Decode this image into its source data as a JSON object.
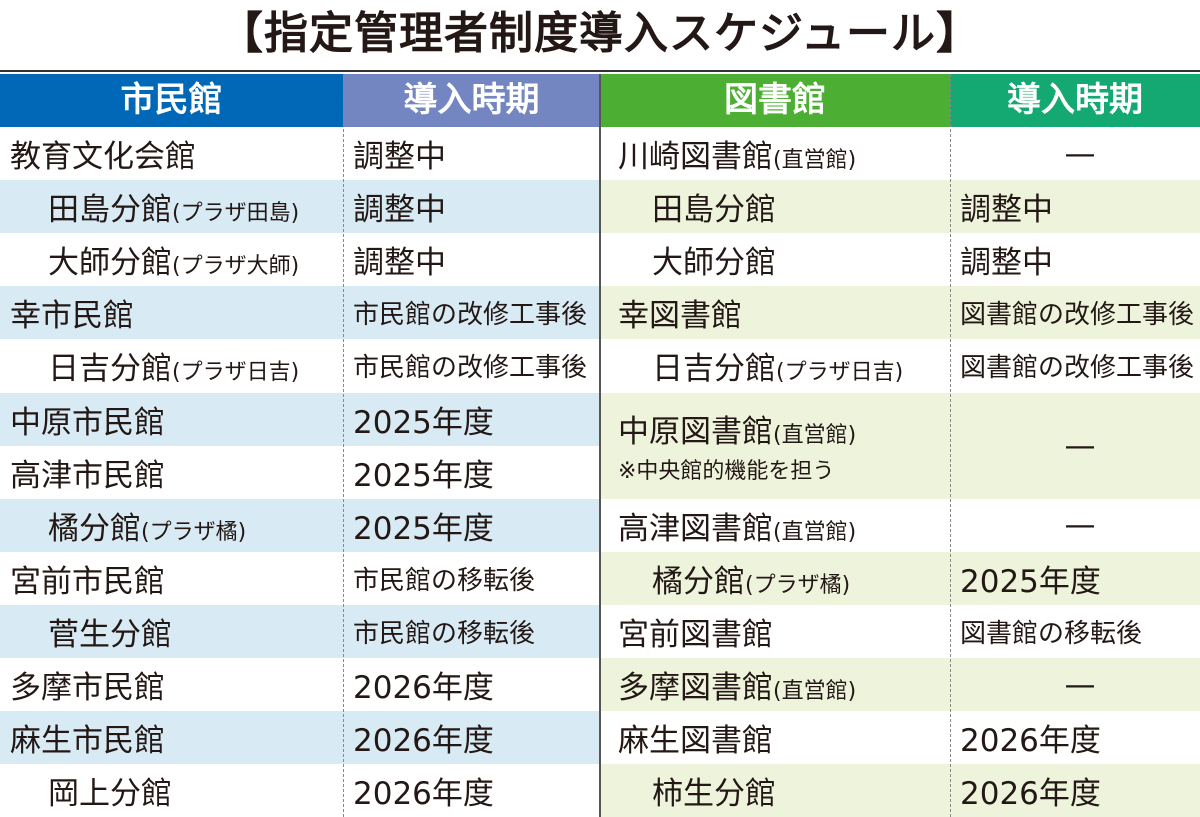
{
  "title": "【指定管理者制度導入スケジュール】",
  "colors": {
    "civic_header": "#0068b7",
    "civic_period_header": "#7486c2",
    "library_header": "#4cae32",
    "library_period_header": "#14a873",
    "civic_stripe": "#d8eaf4",
    "library_stripe": "#eef4dc"
  },
  "headers": {
    "civic": "市民館",
    "civic_period": "導入時期",
    "library": "図書館",
    "library_period": "導入時期"
  },
  "civic_rows": [
    {
      "name": "教育文化会館",
      "suffix": "",
      "period": "調整中",
      "indent": false
    },
    {
      "name": "田島分館",
      "suffix": "(プラザ田島)",
      "period": "調整中",
      "indent": true
    },
    {
      "name": "大師分館",
      "suffix": "(プラザ大師)",
      "period": "調整中",
      "indent": true
    },
    {
      "name": "幸市民館",
      "suffix": "",
      "period": "市民館の改修工事後",
      "indent": false
    },
    {
      "name": "日吉分館",
      "suffix": "(プラザ日吉)",
      "period": "市民館の改修工事後",
      "indent": true
    },
    {
      "name": "中原市民館",
      "suffix": "",
      "period": "2025年度",
      "indent": false
    },
    {
      "name": "高津市民館",
      "suffix": "",
      "period": "2025年度",
      "indent": false
    },
    {
      "name": "橘分館",
      "suffix": "(プラザ橘)",
      "period": "2025年度",
      "indent": true
    },
    {
      "name": "宮前市民館",
      "suffix": "",
      "period": "市民館の移転後",
      "indent": false
    },
    {
      "name": "菅生分館",
      "suffix": "",
      "period": "市民館の移転後",
      "indent": true
    },
    {
      "name": "多摩市民館",
      "suffix": "",
      "period": "2026年度",
      "indent": false
    },
    {
      "name": "麻生市民館",
      "suffix": "",
      "period": "2026年度",
      "indent": false
    },
    {
      "name": "岡上分館",
      "suffix": "",
      "period": "2026年度",
      "indent": true
    }
  ],
  "library_rows": [
    {
      "name": "川崎図書館",
      "suffix": "(直営館)",
      "note": "",
      "period": "—",
      "indent": false,
      "span": 1
    },
    {
      "name": "田島分館",
      "suffix": "",
      "note": "",
      "period": "調整中",
      "indent": true,
      "span": 1
    },
    {
      "name": "大師分館",
      "suffix": "",
      "note": "",
      "period": "調整中",
      "indent": true,
      "span": 1
    },
    {
      "name": "幸図書館",
      "suffix": "",
      "note": "",
      "period": "図書館の改修工事後",
      "indent": false,
      "span": 1
    },
    {
      "name": "日吉分館",
      "suffix": "(プラザ日吉)",
      "note": "",
      "period": "図書館の改修工事後",
      "indent": true,
      "span": 1
    },
    {
      "name": "中原図書館",
      "suffix": "(直営館)",
      "note": "※中央館的機能を担う",
      "period": "—",
      "indent": false,
      "span": 2
    },
    {
      "name": "高津図書館",
      "suffix": "(直営館)",
      "note": "",
      "period": "—",
      "indent": false,
      "span": 1
    },
    {
      "name": "橘分館",
      "suffix": "(プラザ橘)",
      "note": "",
      "period": "2025年度",
      "indent": true,
      "span": 1
    },
    {
      "name": "宮前図書館",
      "suffix": "",
      "note": "",
      "period": "図書館の移転後",
      "indent": false,
      "span": 1
    },
    {
      "name": "多摩図書館",
      "suffix": "(直営館)",
      "note": "",
      "period": "—",
      "indent": false,
      "span": 1
    },
    {
      "name": "麻生図書館",
      "suffix": "",
      "note": "",
      "period": "2026年度",
      "indent": false,
      "span": 1
    },
    {
      "name": "柿生分館",
      "suffix": "",
      "note": "",
      "period": "2026年度",
      "indent": true,
      "span": 1
    }
  ]
}
